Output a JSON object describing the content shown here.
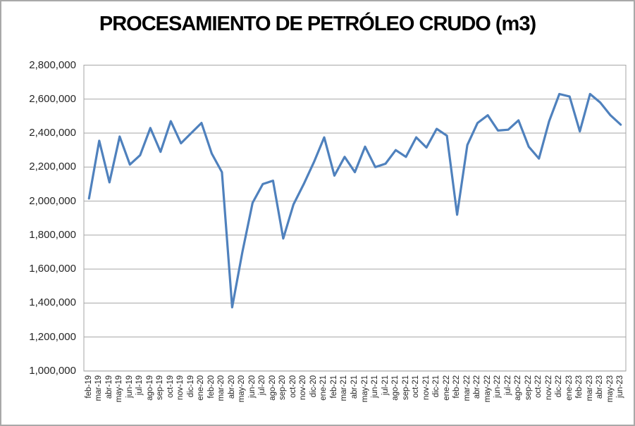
{
  "chart_data": {
    "type": "line",
    "title": "PROCESAMIENTO DE PETRÓLEO CRUDO (m3)",
    "categories": [
      "feb-19",
      "mar-19",
      "abr-19",
      "may-19",
      "jun-19",
      "jul-19",
      "ago-19",
      "sep-19",
      "oct-19",
      "nov-19",
      "dic-19",
      "ene-20",
      "feb-20",
      "mar-20",
      "abr-20",
      "may-20",
      "jun-20",
      "jul-20",
      "ago-20",
      "sep-20",
      "oct-20",
      "nov-20",
      "dic-20",
      "ene-21",
      "feb-21",
      "mar-21",
      "abr-21",
      "may-21",
      "jun-21",
      "jul-21",
      "ago-21",
      "sep-21",
      "oct-21",
      "nov-21",
      "dic-21",
      "ene-22",
      "feb-22",
      "mar-22",
      "abr-22",
      "may-22",
      "jun-22",
      "jul-22",
      "ago-22",
      "sep-22",
      "oct-22",
      "nov-22",
      "dic-22",
      "ene-23",
      "feb-23",
      "mar-23",
      "abr-23",
      "may-23",
      "jun-23"
    ],
    "values": [
      2015000,
      2355000,
      2110000,
      2380000,
      2215000,
      2270000,
      2430000,
      2290000,
      2470000,
      2340000,
      2400000,
      2460000,
      2280000,
      2170000,
      1375000,
      1700000,
      1990000,
      2100000,
      2120000,
      1780000,
      1980000,
      2100000,
      2230000,
      2375000,
      2150000,
      2260000,
      2170000,
      2320000,
      2200000,
      2220000,
      2300000,
      2260000,
      2375000,
      2315000,
      2425000,
      2385000,
      1920000,
      2330000,
      2460000,
      2505000,
      2415000,
      2420000,
      2475000,
      2320000,
      2250000,
      2470000,
      2630000,
      2615000,
      2410000,
      2630000,
      2580000,
      2505000,
      2450000
    ],
    "xlabel": "",
    "ylabel": "",
    "ylim": [
      1000000,
      2800000
    ],
    "y_step": 200000,
    "y_tick_labels": [
      "2,800,000",
      "2,600,000",
      "2,400,000",
      "2,200,000",
      "2,000,000",
      "1,800,000",
      "1,600,000",
      "1,400,000",
      "1,200,000",
      "1,000,000"
    ],
    "grid": "horizontal",
    "legend": "none",
    "line_color": "#4F81BD",
    "gridline_color": "#a6a6a6",
    "plot_border_color": "#a6a6a6",
    "axis_text_color": "#262626",
    "title_color": "#000000"
  }
}
